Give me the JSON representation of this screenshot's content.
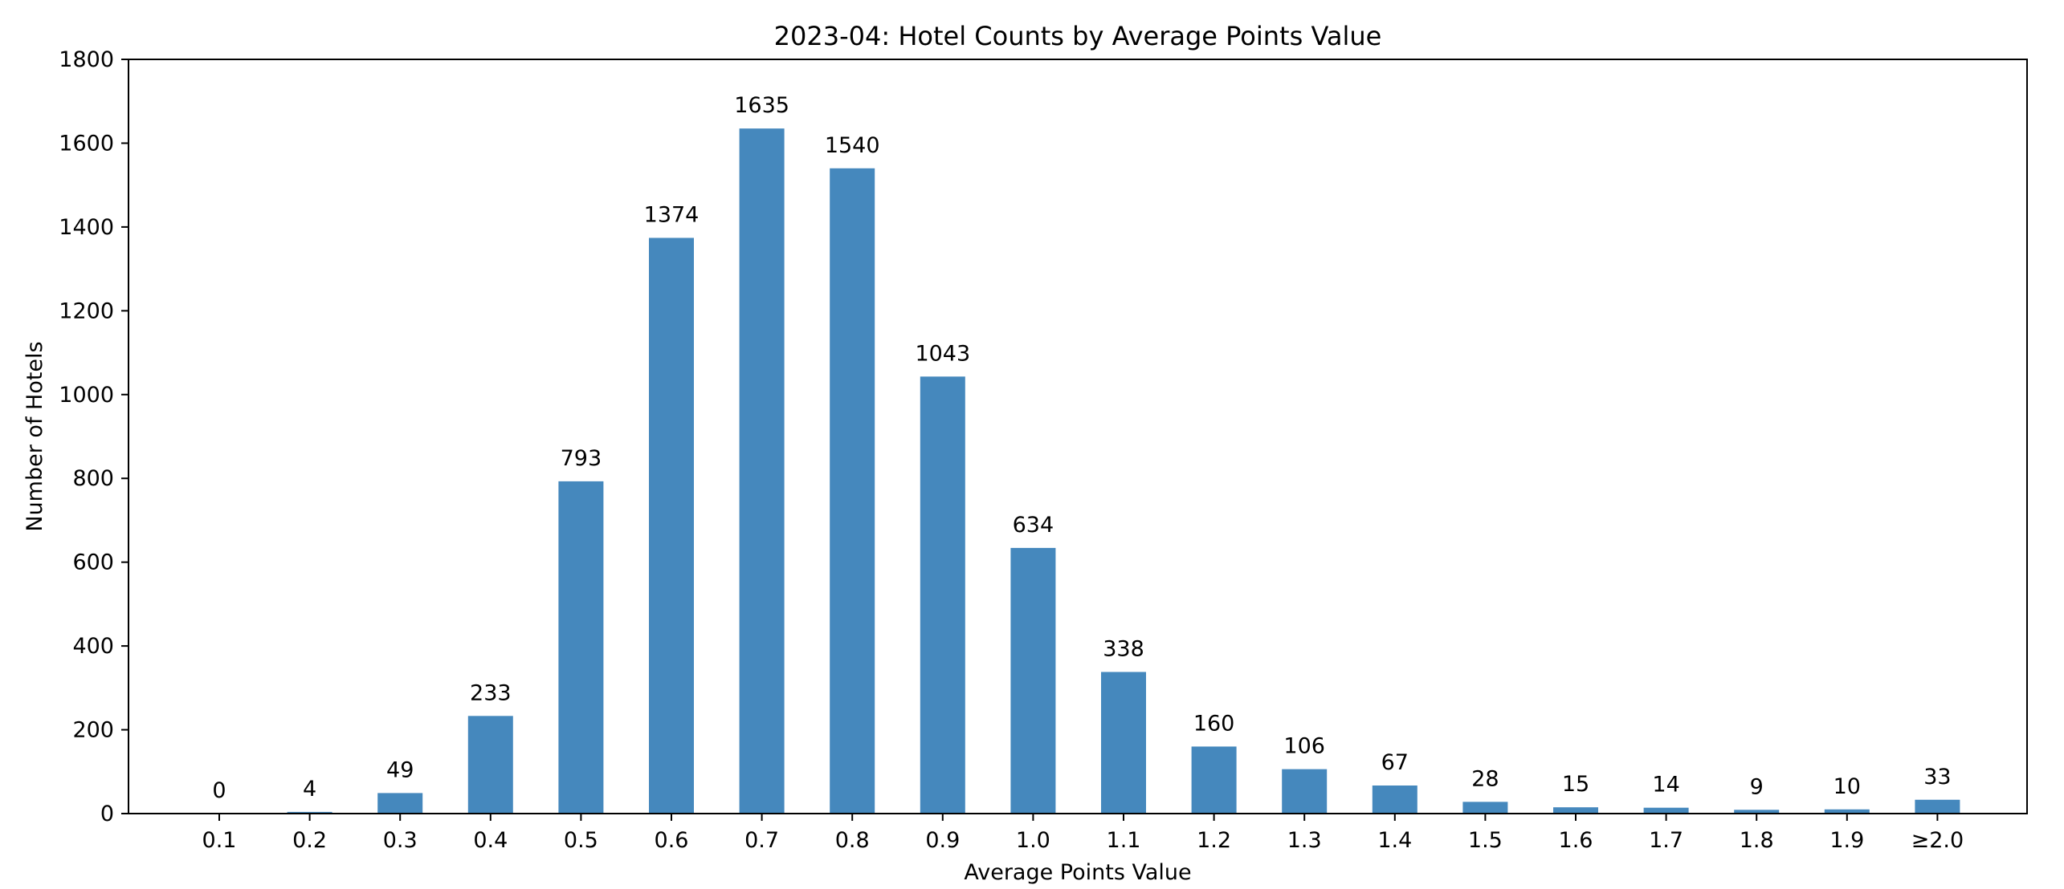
{
  "chart_data": {
    "type": "bar",
    "title": "2023-04: Hotel Counts by Average Points Value",
    "xlabel": "Average Points Value",
    "ylabel": "Number of Hotels",
    "categories": [
      "0.1",
      "0.2",
      "0.3",
      "0.4",
      "0.5",
      "0.6",
      "0.7",
      "0.8",
      "0.9",
      "1.0",
      "1.1",
      "1.2",
      "1.3",
      "1.4",
      "1.5",
      "1.6",
      "1.7",
      "1.8",
      "1.9",
      "≥2.0"
    ],
    "values": [
      0,
      4,
      49,
      233,
      793,
      1374,
      1635,
      1540,
      1043,
      634,
      338,
      160,
      106,
      67,
      28,
      15,
      14,
      9,
      10,
      33
    ],
    "data_labels": [
      "0",
      "4",
      "49",
      "233",
      "793",
      "1374",
      "1635",
      "1540",
      "1043",
      "634",
      "338",
      "160",
      "106",
      "67",
      "28",
      "15",
      "14",
      "9",
      "10",
      "33"
    ],
    "ylim": [
      0,
      1800
    ],
    "yticks": [
      0,
      200,
      400,
      600,
      800,
      1000,
      1200,
      1400,
      1600,
      1800
    ],
    "ytick_labels": [
      "0",
      "200",
      "400",
      "600",
      "800",
      "1000",
      "1200",
      "1400",
      "1600",
      "1800"
    ],
    "bar_color": "#4588bd",
    "grid": false,
    "legend": "none"
  }
}
